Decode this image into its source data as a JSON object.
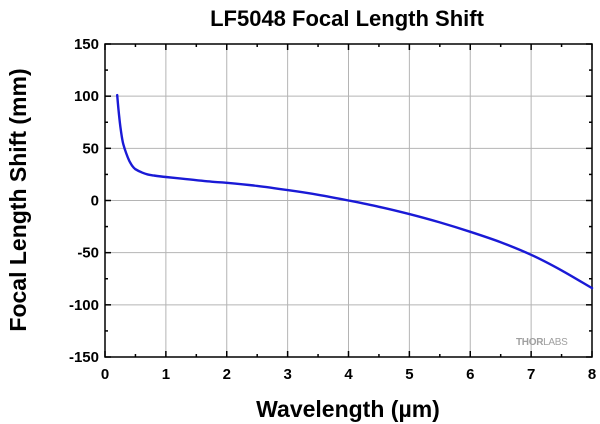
{
  "chart_data": {
    "type": "line",
    "title": "LF5048 Focal Length Shift",
    "xlabel": "Wavelength (µm)",
    "ylabel": "Focal Length Shift (mm)",
    "xlim": [
      0,
      8
    ],
    "ylim": [
      -150,
      150
    ],
    "x_ticks": [
      "0",
      "1",
      "2",
      "3",
      "4",
      "5",
      "6",
      "7",
      "8"
    ],
    "y_ticks": [
      "150",
      "100",
      "50",
      "0",
      "-50",
      "-100",
      "-150"
    ],
    "grid": true,
    "legend": "none",
    "series": [
      {
        "color": "#1a1ad6",
        "x": [
          0.2,
          0.22,
          0.25,
          0.28,
          0.3,
          0.35,
          0.4,
          0.45,
          0.5,
          0.6,
          0.7,
          0.8,
          1.0,
          1.25,
          1.5,
          1.75,
          2.0,
          2.5,
          3.0,
          3.5,
          4.0,
          4.5,
          5.0,
          5.5,
          6.0,
          6.5,
          7.0,
          7.5,
          8.0
        ],
        "y": [
          101,
          88,
          72,
          60,
          54,
          45,
          38,
          33,
          30,
          27,
          25,
          24,
          22.5,
          21,
          19.5,
          18,
          17,
          14,
          10,
          5.5,
          0,
          -6,
          -13,
          -21,
          -30,
          -40,
          -52,
          -67,
          -84
        ]
      }
    ]
  },
  "watermark": {
    "text_bold": "THOR",
    "text_light": "LABS"
  }
}
